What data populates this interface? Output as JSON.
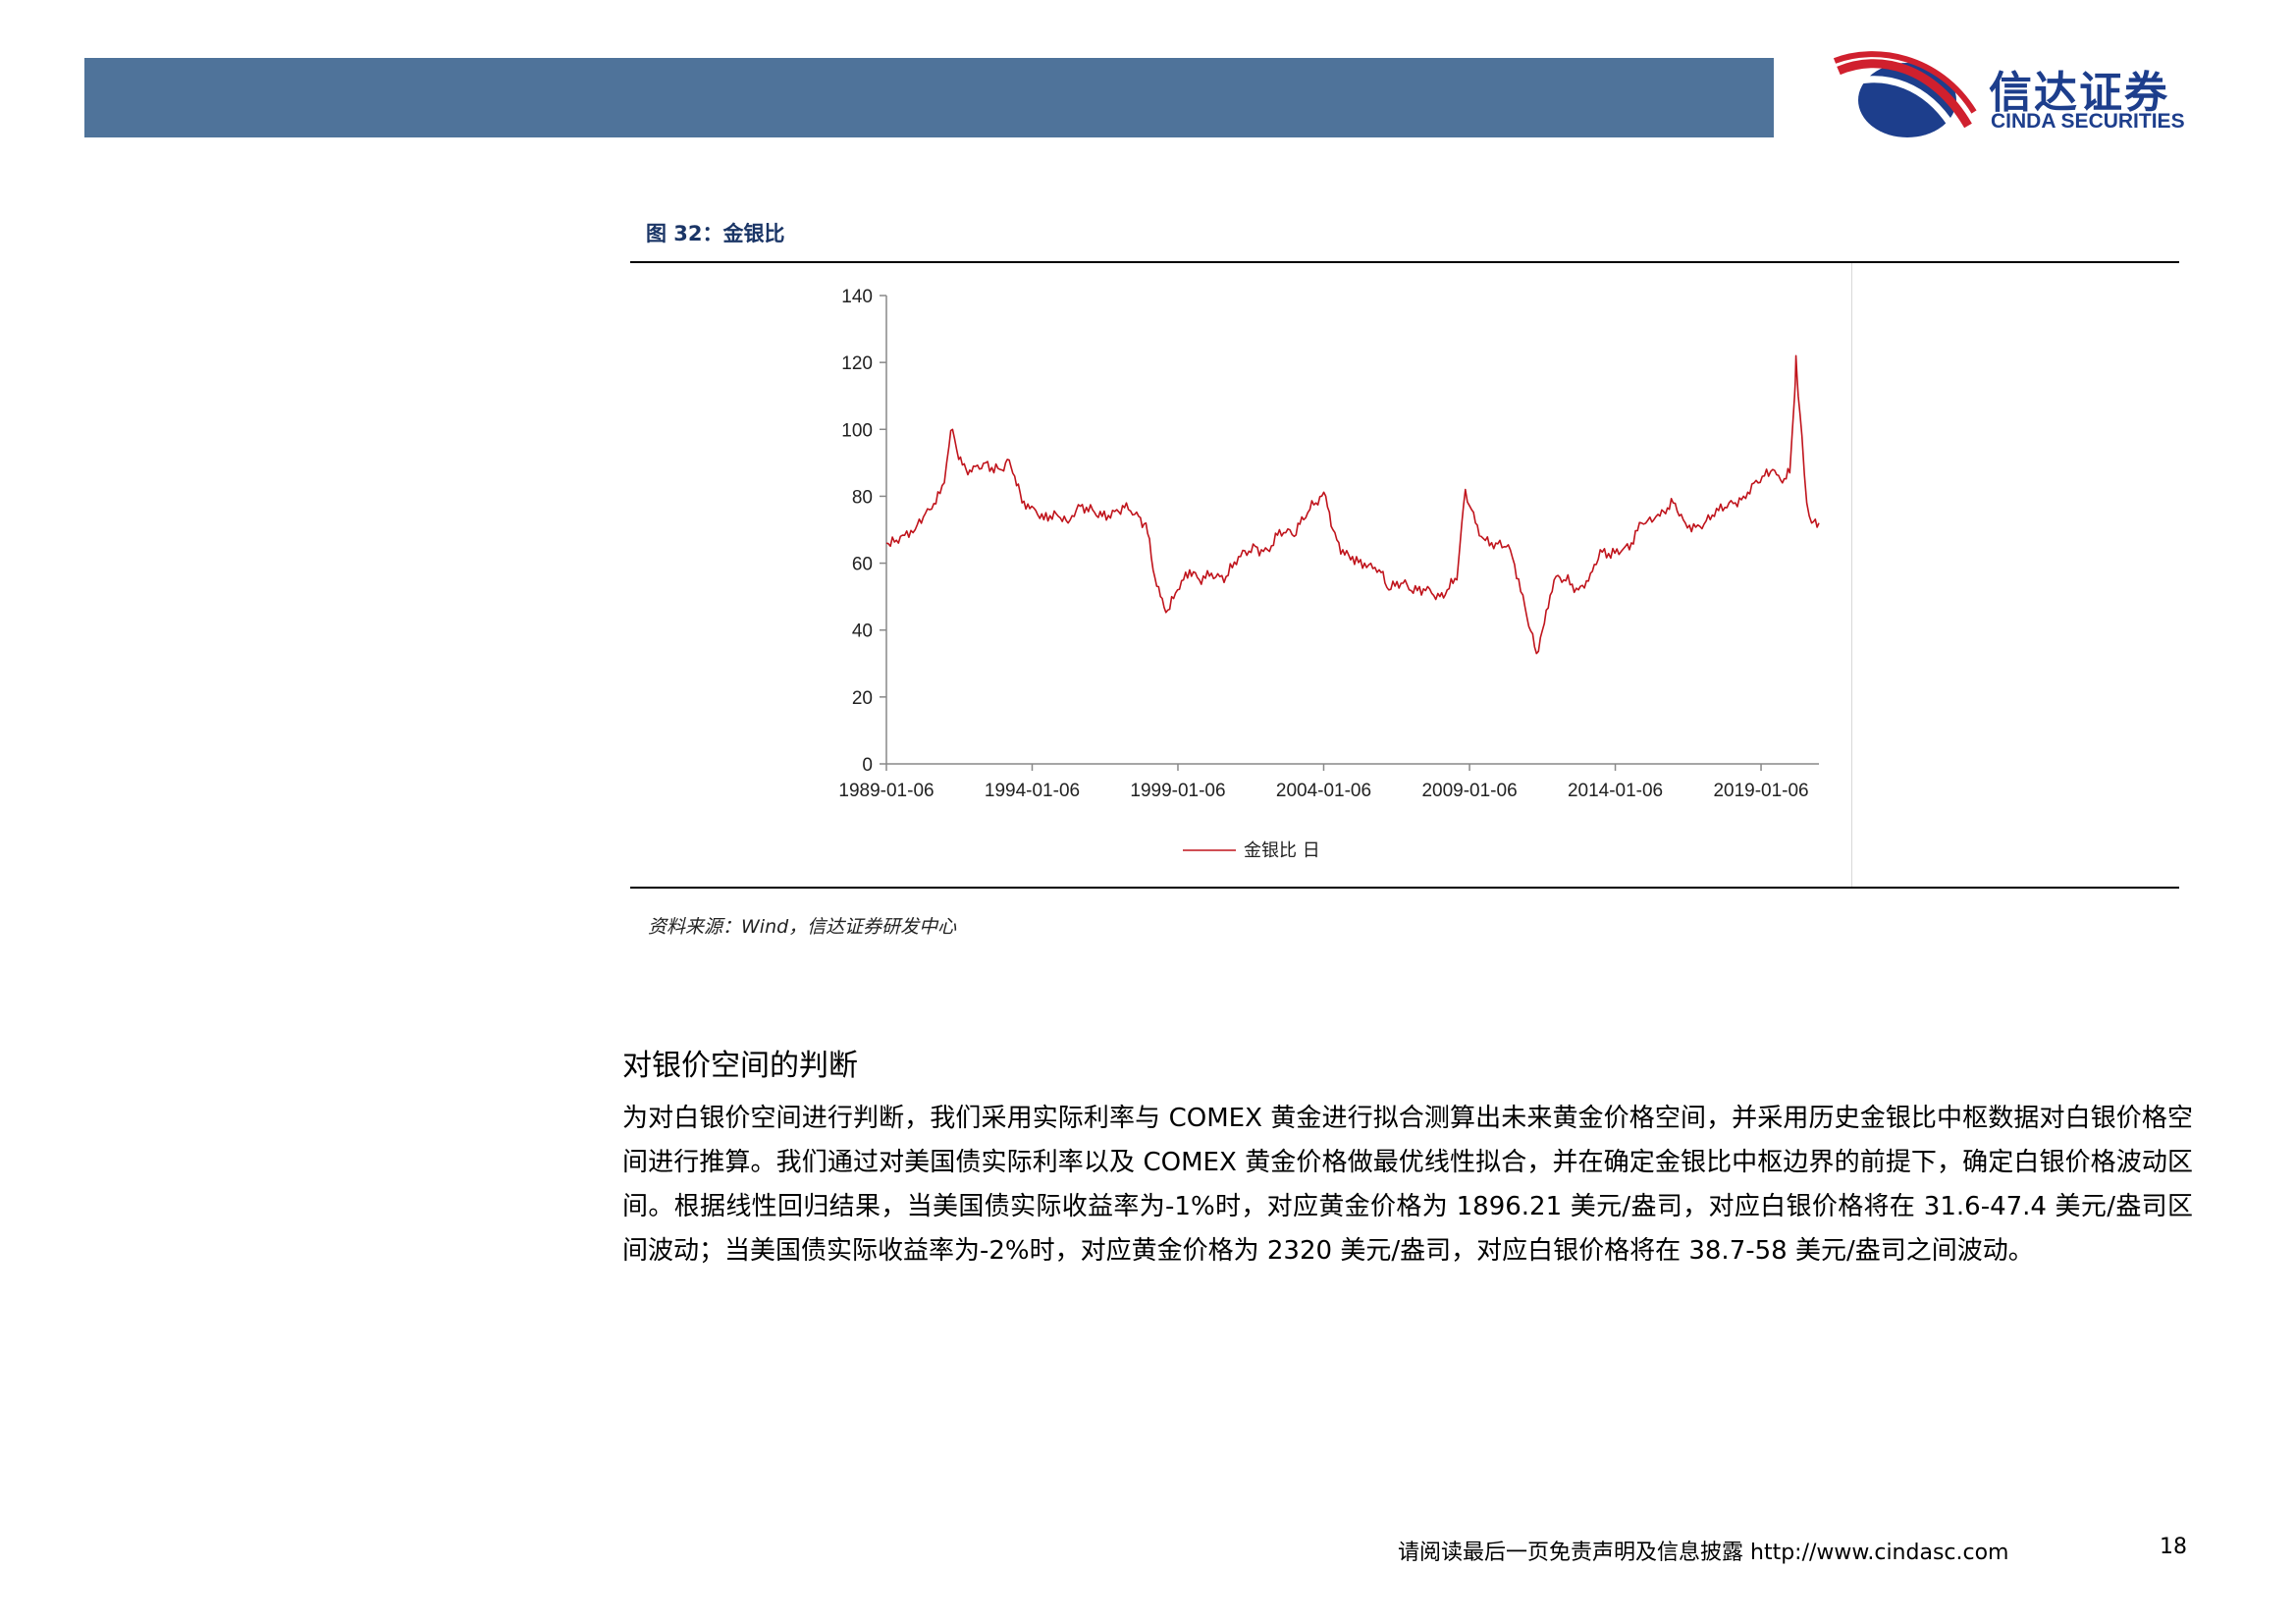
{
  "header": {
    "logo_cn": "信达证券",
    "logo_en": "CINDA SECURITIES",
    "bar_color": "#4f739a",
    "logo_blue": "#1d3e8c",
    "logo_red": "#d0202e"
  },
  "figure": {
    "title": "图 32：金银比",
    "source": "资料来源：Wind，信达证券研发中心"
  },
  "chart_data": {
    "type": "line",
    "title": "",
    "xlabel": "",
    "ylabel": "",
    "ylim": [
      0,
      140
    ],
    "yticks": [
      0,
      20,
      40,
      60,
      80,
      100,
      120,
      140
    ],
    "xlim": [
      "1989-01-06",
      "2020-12-31"
    ],
    "xtick_labels": [
      "1989-01-06",
      "1994-01-06",
      "1999-01-06",
      "2004-01-06",
      "2009-01-06",
      "2014-01-06",
      "2019-01-06"
    ],
    "legend_position": "bottom",
    "grid": false,
    "series": [
      {
        "name": "金银比 日",
        "color": "#c0141c",
        "points": [
          [
            "1989-01-06",
            66
          ],
          [
            "1989-07-01",
            68
          ],
          [
            "1990-01-01",
            70
          ],
          [
            "1990-07-01",
            76
          ],
          [
            "1991-01-01",
            84
          ],
          [
            "1991-03-01",
            95
          ],
          [
            "1991-04-15",
            100
          ],
          [
            "1991-07-01",
            91
          ],
          [
            "1991-10-01",
            88
          ],
          [
            "1992-01-01",
            89
          ],
          [
            "1992-06-01",
            90
          ],
          [
            "1992-12-01",
            88
          ],
          [
            "1993-03-01",
            91
          ],
          [
            "1993-06-01",
            86
          ],
          [
            "1993-09-01",
            78
          ],
          [
            "1994-01-01",
            77
          ],
          [
            "1994-06-01",
            73
          ],
          [
            "1994-12-01",
            74
          ],
          [
            "1995-04-01",
            72
          ],
          [
            "1995-09-01",
            77
          ],
          [
            "1996-02-01",
            76
          ],
          [
            "1996-06-01",
            74
          ],
          [
            "1996-12-01",
            76
          ],
          [
            "1997-04-01",
            78
          ],
          [
            "1997-09-01",
            74
          ],
          [
            "1997-12-01",
            72
          ],
          [
            "1998-03-01",
            58
          ],
          [
            "1998-06-01",
            50
          ],
          [
            "1998-09-01",
            46
          ],
          [
            "1999-01-01",
            52
          ],
          [
            "1999-06-01",
            58
          ],
          [
            "1999-10-01",
            55
          ],
          [
            "2000-03-01",
            57
          ],
          [
            "2000-09-01",
            56
          ],
          [
            "2001-03-01",
            62
          ],
          [
            "2001-09-01",
            65
          ],
          [
            "2002-02-01",
            64
          ],
          [
            "2002-07-01",
            70
          ],
          [
            "2003-01-01",
            68
          ],
          [
            "2003-05-01",
            73
          ],
          [
            "2003-10-01",
            78
          ],
          [
            "2004-02-01",
            80
          ],
          [
            "2004-05-01",
            70
          ],
          [
            "2004-09-01",
            64
          ],
          [
            "2005-01-01",
            62
          ],
          [
            "2005-06-01",
            60
          ],
          [
            "2005-12-01",
            58
          ],
          [
            "2006-04-01",
            52
          ],
          [
            "2006-09-01",
            54
          ],
          [
            "2007-02-01",
            51
          ],
          [
            "2007-08-01",
            53
          ],
          [
            "2008-01-01",
            50
          ],
          [
            "2008-04-01",
            52
          ],
          [
            "2008-08-01",
            55
          ],
          [
            "2008-10-01",
            72
          ],
          [
            "2008-11-15",
            82
          ],
          [
            "2009-02-01",
            76
          ],
          [
            "2009-06-01",
            68
          ],
          [
            "2009-12-01",
            66
          ],
          [
            "2010-06-01",
            64
          ],
          [
            "2010-12-01",
            47
          ],
          [
            "2011-04-25",
            33
          ],
          [
            "2011-08-01",
            42
          ],
          [
            "2011-12-01",
            55
          ],
          [
            "2012-04-01",
            55
          ],
          [
            "2012-10-01",
            52
          ],
          [
            "2013-03-01",
            57
          ],
          [
            "2013-07-01",
            64
          ],
          [
            "2014-01-01",
            63
          ],
          [
            "2014-07-01",
            64
          ],
          [
            "2014-12-01",
            72
          ],
          [
            "2015-06-01",
            74
          ],
          [
            "2016-01-01",
            78
          ],
          [
            "2016-06-01",
            72
          ],
          [
            "2016-12-01",
            71
          ],
          [
            "2017-06-01",
            74
          ],
          [
            "2017-12-01",
            78
          ],
          [
            "2018-06-01",
            80
          ],
          [
            "2018-12-01",
            84
          ],
          [
            "2019-06-01",
            88
          ],
          [
            "2019-10-01",
            84
          ],
          [
            "2020-01-01",
            87
          ],
          [
            "2020-03-01",
            110
          ],
          [
            "2020-03-18",
            122
          ],
          [
            "2020-04-15",
            110
          ],
          [
            "2020-06-01",
            98
          ],
          [
            "2020-08-01",
            78
          ],
          [
            "2020-10-01",
            72
          ],
          [
            "2020-12-31",
            72
          ]
        ]
      }
    ]
  },
  "section": {
    "heading": "对银价空间的判断",
    "paragraph": "为对白银价空间进行判断，我们采用实际利率与 COMEX 黄金进行拟合测算出未来黄金价格空间，并采用历史金银比中枢数据对白银价格空间进行推算。我们通过对美国债实际利率以及 COMEX 黄金价格做最优线性拟合，并在确定金银比中枢边界的前提下，确定白银价格波动区间。根据线性回归结果，当美国债实际收益率为-1%时，对应黄金价格为 1896.21 美元/盎司，对应白银价格将在 31.6-47.4 美元/盎司区间波动；当美国债实际收益率为-2%时，对应黄金价格为 2320 美元/盎司，对应白银价格将在 38.7-58 美元/盎司之间波动。"
  },
  "footer": {
    "disclaimer_url": "请阅读最后一页免责声明及信息披露 http://www.cindasc.com",
    "page_number": "18"
  }
}
